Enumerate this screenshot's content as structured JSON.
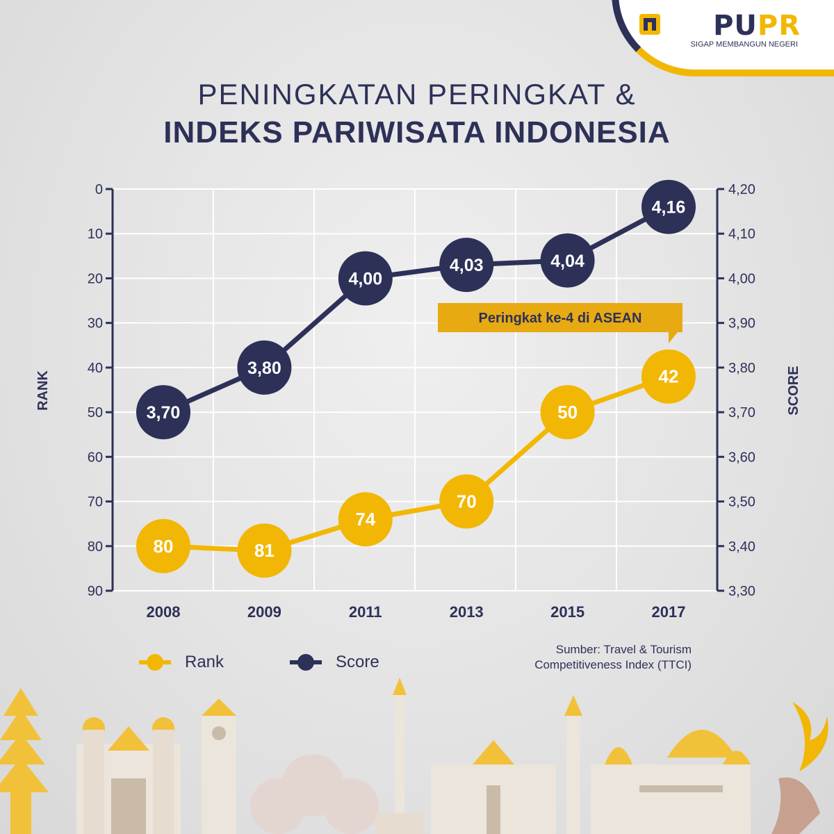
{
  "brand": {
    "name_part1": "PU",
    "name_part2": "PR",
    "tagline": "SIGAP MEMBANGUN NEGERI"
  },
  "title": {
    "line1": "PENINGKATAN PERINGKAT &",
    "line2": "INDEKS PARIWISATA INDONESIA"
  },
  "colors": {
    "navy": "#2d3158",
    "gold": "#f2b705"
  },
  "legend": {
    "rank_label": "Rank",
    "score_label": "Score"
  },
  "source": {
    "line1": "Sumber: Travel & Tourism",
    "line2": "Competitiveness Index (TTCI)"
  },
  "chart_data": {
    "type": "line",
    "categories": [
      "2008",
      "2009",
      "2011",
      "2013",
      "2015",
      "2017"
    ],
    "left_axis": {
      "label": "RANK",
      "ylim": [
        0,
        90
      ],
      "ticks": [
        "0",
        "10",
        "20",
        "30",
        "40",
        "50",
        "60",
        "70",
        "80",
        "90"
      ],
      "inverted": true
    },
    "right_axis": {
      "label": "SCORE",
      "ylim": [
        3.3,
        4.2
      ],
      "ticks": [
        "4,20",
        "4,10",
        "4,00",
        "3,90",
        "3,80",
        "3,70",
        "3,60",
        "3,50",
        "3,40",
        "3,30"
      ]
    },
    "series": [
      {
        "name": "Rank",
        "axis": "left",
        "values": [
          80,
          81,
          74,
          70,
          50,
          42
        ],
        "labels": [
          "80",
          "81",
          "74",
          "70",
          "50",
          "42"
        ]
      },
      {
        "name": "Score",
        "axis": "right",
        "values": [
          3.7,
          3.8,
          4.0,
          4.03,
          4.04,
          4.16
        ],
        "labels": [
          "3,70",
          "3,80",
          "4,00",
          "4,03",
          "4,04",
          "4,16"
        ]
      }
    ],
    "annotation": {
      "text": "Peringkat ke-4 di ASEAN",
      "category": "2017",
      "series": "Rank"
    },
    "grid": true,
    "legend_position": "bottom-left"
  }
}
